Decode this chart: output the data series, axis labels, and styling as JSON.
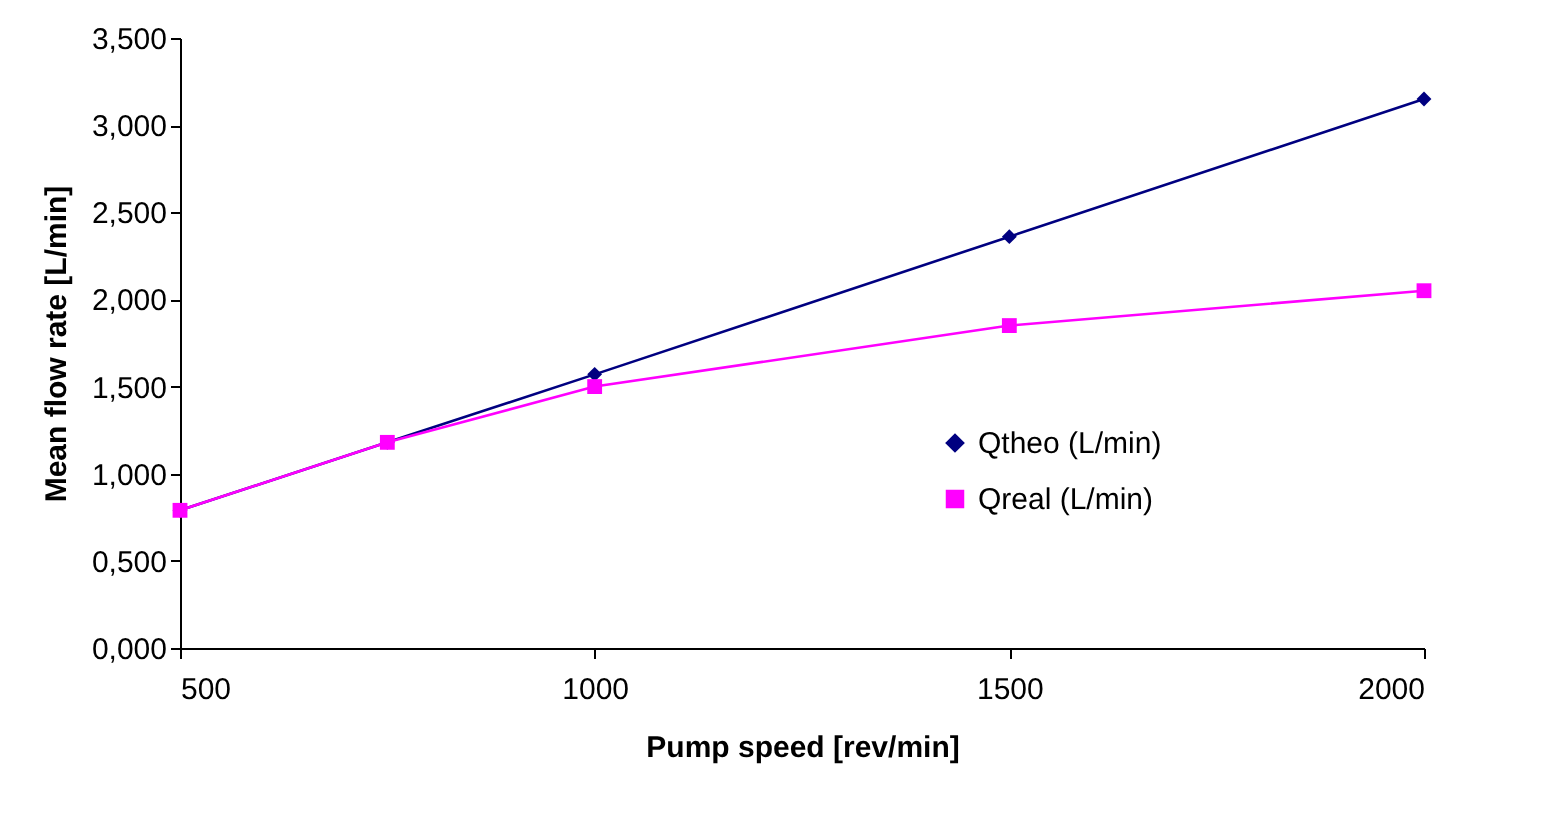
{
  "chart_data": {
    "type": "line",
    "xlabel": "Pump speed [rev/min]",
    "ylabel": "Mean flow rate [L/min]",
    "x": [
      500,
      750,
      1000,
      1500,
      2000
    ],
    "series": [
      {
        "name": "Qtheo (L/min)",
        "color": "#000080",
        "marker": "diamond",
        "values": [
          0.79,
          1.18,
          1.57,
          2.36,
          3.15
        ]
      },
      {
        "name": "Qreal (L/min)",
        "color": "#ff00ff",
        "marker": "square",
        "values": [
          0.79,
          1.18,
          1.5,
          1.85,
          2.05
        ]
      }
    ],
    "xlim": [
      500,
      2000
    ],
    "xticks": [
      500,
      1000,
      1500,
      2000
    ],
    "ylim": [
      0,
      3.5
    ],
    "yticks": [
      {
        "value": 0,
        "label": "0,000"
      },
      {
        "value": 0.5,
        "label": "0,500"
      },
      {
        "value": 1,
        "label": "1,000"
      },
      {
        "value": 1.5,
        "label": "1,500"
      },
      {
        "value": 2,
        "label": "2,000"
      },
      {
        "value": 2.5,
        "label": "2,500"
      },
      {
        "value": 3,
        "label": "3,000"
      },
      {
        "value": 3.5,
        "label": "3,500"
      }
    ],
    "grid": false,
    "legend": "bottom right",
    "line_style": "solid"
  }
}
